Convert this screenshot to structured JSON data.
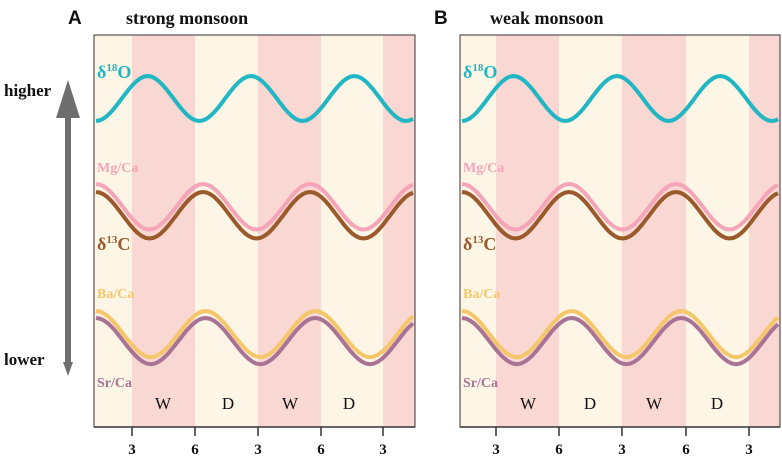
{
  "axis": {
    "higher": "higher",
    "lower": "lower",
    "arrow_color": "#6e6e6e"
  },
  "colors": {
    "wet_band": "#f9d7d2",
    "dry_band": "#fdf5e6",
    "d18O": "#20b6c3",
    "MgCa": "#f6a4b8",
    "d13C": "#9a5a2c",
    "BaCa": "#f6c76a",
    "SrCa": "#a97396"
  },
  "panels": [
    {
      "id": "A",
      "letter": "A",
      "title": "strong monsoon",
      "labels": {
        "d18O_main": "δ",
        "d18O_sup": "18",
        "d18O_end": "O",
        "mg": "Mg/Ca",
        "d13C_main": "δ",
        "d13C_sup": "13",
        "d13C_end": "C",
        "ba": "Ba/Ca",
        "sr": "Sr/Ca"
      },
      "seasons": [
        "W",
        "D",
        "W",
        "D"
      ],
      "ticks": [
        "3",
        "6",
        "3",
        "6",
        "3"
      ]
    },
    {
      "id": "B",
      "letter": "B",
      "title": "weak monsoon",
      "labels": {
        "d18O_main": "δ",
        "d18O_sup": "18",
        "d18O_end": "O",
        "mg": "Mg/Ca",
        "d13C_main": "δ",
        "d13C_sup": "13",
        "d13C_end": "C",
        "ba": "Ba/Ca",
        "sr": "Sr/Ca"
      },
      "seasons": [
        "W",
        "D",
        "W",
        "D"
      ],
      "ticks": [
        "3",
        "6",
        "3",
        "6",
        "3"
      ]
    }
  ]
}
